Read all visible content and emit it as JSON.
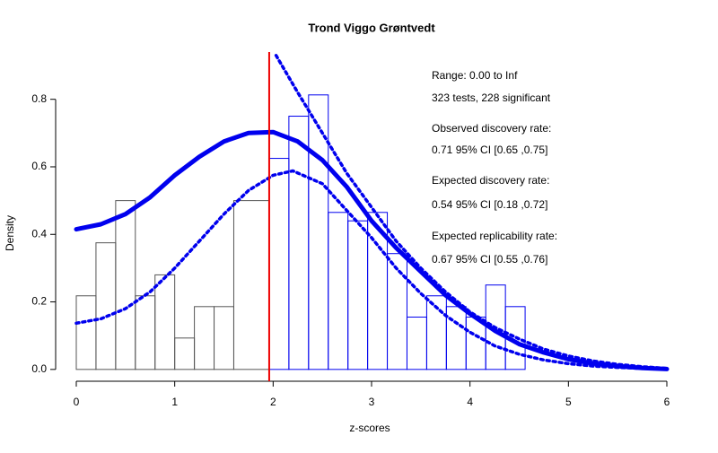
{
  "chart_data": {
    "type": "histogram",
    "title": "Trond Viggo Grøntvedt",
    "x_label": "z-scores",
    "y_label": "Density",
    "bins": [
      0,
      0.2,
      0.4,
      0.6,
      0.8,
      1.0,
      1.2,
      1.4,
      1.6,
      1.96,
      2.16,
      2.36,
      2.56,
      2.76,
      2.96,
      3.16,
      3.36,
      3.56,
      3.76,
      3.96,
      4.16,
      4.36,
      4.56
    ],
    "values": [
      0.218,
      0.375,
      0.5,
      0.218,
      0.28,
      0.093,
      0.186,
      0.186,
      0.5,
      0.625,
      0.75,
      0.813,
      0.465,
      0.44,
      0.465,
      0.343,
      0.155,
      0.218,
      0.186,
      0.155,
      0.25,
      0.186
    ],
    "colors": [
      "#555555",
      "#555555",
      "#555555",
      "#555555",
      "#555555",
      "#555555",
      "#555555",
      "#555555",
      "#555555",
      "#0000ee",
      "#0000ee",
      "#0000ee",
      "#0000ee",
      "#0000ee",
      "#0000ee",
      "#0000ee",
      "#0000ee",
      "#0000ee",
      "#0000ee",
      "#0000ee",
      "#0000ee",
      "#0000ee"
    ],
    "lines": [
      {
        "color": "#0000ee",
        "style": "solid",
        "x": [
          0,
          0.25,
          0.5,
          0.75,
          1,
          1.25,
          1.5,
          1.75,
          2,
          2.25,
          2.5,
          2.75,
          3,
          3.25,
          3.5,
          3.75,
          4,
          4.25,
          4.5,
          4.75,
          5,
          5.25,
          5.5,
          5.75,
          6
        ],
        "values": [
          0.415,
          0.43,
          0.46,
          0.51,
          0.575,
          0.63,
          0.675,
          0.7,
          0.703,
          0.675,
          0.62,
          0.54,
          0.44,
          0.36,
          0.29,
          0.22,
          0.165,
          0.115,
          0.075,
          0.05,
          0.03,
          0.018,
          0.01,
          0.004,
          0.001
        ]
      },
      {
        "color": "#0000ee",
        "style": "dotted",
        "x": [
          2.03,
          2.25,
          2.5,
          2.75,
          3,
          3.25,
          3.5,
          3.75,
          4,
          4.25,
          4.5,
          4.75,
          5,
          5.25,
          5.5,
          5.75,
          6
        ],
        "values": [
          0.93,
          0.82,
          0.7,
          0.58,
          0.48,
          0.38,
          0.3,
          0.23,
          0.17,
          0.125,
          0.09,
          0.06,
          0.04,
          0.025,
          0.015,
          0.008,
          0.003
        ]
      },
      {
        "color": "#0000ee",
        "style": "dotted",
        "x": [
          0,
          0.25,
          0.5,
          0.75,
          1,
          1.25,
          1.5,
          1.75,
          2,
          2.2,
          2.5,
          2.75,
          3,
          3.25,
          3.5,
          3.75,
          4,
          4.25,
          4.5,
          4.75,
          5,
          5.25,
          5.5,
          5.75,
          6
        ],
        "values": [
          0.137,
          0.15,
          0.18,
          0.23,
          0.3,
          0.38,
          0.46,
          0.53,
          0.575,
          0.588,
          0.55,
          0.47,
          0.39,
          0.3,
          0.225,
          0.16,
          0.11,
          0.07,
          0.045,
          0.028,
          0.017,
          0.01,
          0.006,
          0.003,
          0.001
        ]
      }
    ],
    "vline": {
      "value": 1.96,
      "color": "#ee0000"
    },
    "annotations": [
      "Range: 0.00 to Inf",
      "323 tests, 228 significant",
      "Observed discovery rate:",
      "0.71  95% CI [0.65 ,0.75]",
      "Expected discovery rate:",
      "0.54  95% CI [0.18 ,0.72]",
      "Expected replicability rate:",
      "0.67  95% CI [0.55 ,0.76]"
    ],
    "xlim": [
      0,
      6
    ],
    "xticks": [
      0,
      1,
      2,
      3,
      4,
      5,
      6
    ],
    "ylim": [
      -0.035,
      0.94
    ],
    "yticks": [
      {
        "value": 0,
        "label": "0.0"
      },
      0.2,
      0.4,
      0.6,
      0.8
    ]
  }
}
